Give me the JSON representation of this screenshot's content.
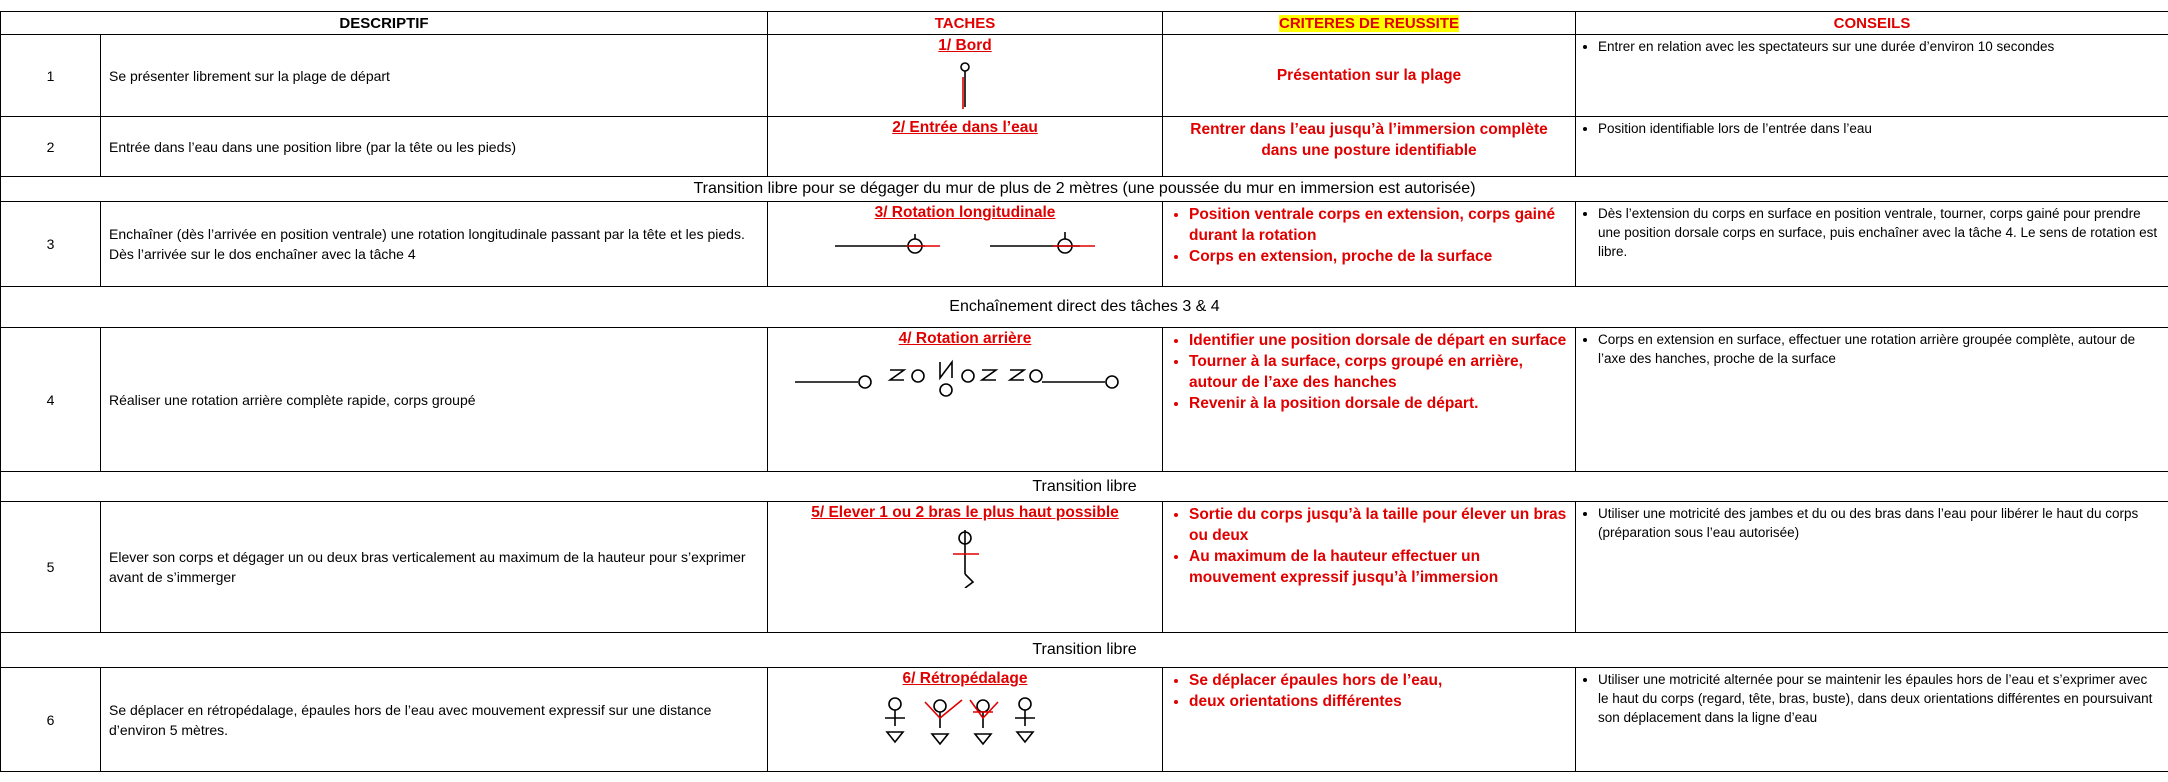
{
  "header": {
    "descriptif": "DESCRIPTIF",
    "taches": "TACHES",
    "criteres": "CRITERES DE REUSSITE",
    "conseils": "CONSEILS"
  },
  "table": {
    "rows": [
      {
        "number": "1",
        "description": "Se présenter librement sur la plage de départ",
        "task": "1/ Bord",
        "criteria": "Présentation sur la plage",
        "advice": "Entrer en relation avec les spectateurs sur une durée d’environ 10 secondes"
      },
      {
        "number": "2",
        "description": "Entrée dans l’eau dans une position libre (par la tête ou les pieds)",
        "task": "2/ Entrée dans l’eau",
        "criteria": "Rentrer dans l’eau jusqu’à l’immersion complète dans une posture identifiable",
        "advice": "Position identifiable lors de l’entrée dans l’eau"
      },
      {
        "transition": "Transition libre pour se dégager du mur de plus de 2 mètres (une poussée du mur en immersion est autorisée)"
      },
      {
        "number": "3",
        "description": "Enchaîner (dès l’arrivée en position ventrale) une rotation longitudinale passant par la tête et les pieds. Dès l’arrivée sur le dos enchaîner avec la tâche 4",
        "task": "3/ Rotation longitudinale",
        "criteria": [
          "Position ventrale corps en extension, corps gainé durant la rotation",
          "Corps en extension, proche de la surface"
        ],
        "advice": "Dès l’extension du corps en surface en position ventrale, tourner, corps gainé pour prendre une position dorsale corps en surface, puis enchaîner avec la tâche 4. Le sens de rotation est libre."
      },
      {
        "transition": "Enchaînement direct des tâches 3 & 4"
      },
      {
        "number": "4",
        "description": "Réaliser une rotation arrière complète rapide, corps groupé",
        "task": "4/ Rotation arrière",
        "criteria": [
          "Identifier une position dorsale de départ en surface",
          "Tourner à la surface, corps groupé en arrière, autour de l’axe des hanches",
          "Revenir à la position dorsale de départ."
        ],
        "advice": "Corps en extension en surface, effectuer une rotation arrière groupée complète, autour de l’axe des hanches, proche de la surface"
      },
      {
        "transition": "Transition libre"
      },
      {
        "number": "5",
        "description": "Elever son corps et dégager un ou deux bras verticalement au maximum de la hauteur pour s’exprimer avant de s’immerger",
        "task": "5/ Elever 1 ou 2 bras le plus haut possible",
        "criteria": [
          "Sortie du corps jusqu’à la taille pour élever un bras ou deux",
          "Au maximum de la hauteur  effectuer un mouvement expressif jusqu’à l’immersion"
        ],
        "advice": "Utiliser une motricité des jambes et du ou des bras dans l’eau pour libérer le haut du corps (préparation sous l’eau autorisée)"
      },
      {
        "transition": "Transition libre"
      },
      {
        "number": "6",
        "description": "Se déplacer en rétropédalage, épaules hors de l’eau avec mouvement expressif sur une distance d’environ 5 mètres.",
        "task": "6/ Rétropédalage",
        "criteria": [
          "Se déplacer épaules hors de l’eau,",
          "deux orientations différentes"
        ],
        "advice": "Utiliser une motricité alternée pour se maintenir les épaules hors de l’eau et s’exprimer avec le haut du corps (regard, tête,  bras, buste), dans deux orientations différentes en poursuivant son déplacement dans la ligne d’eau"
      }
    ]
  }
}
